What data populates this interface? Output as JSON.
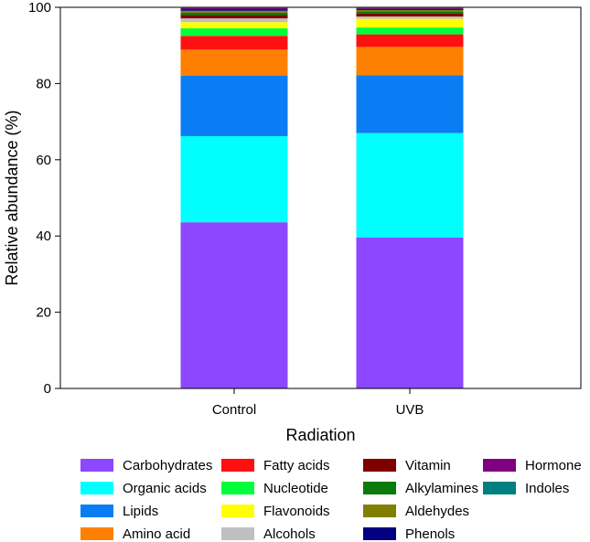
{
  "chart_data": {
    "type": "stacked_bar",
    "xlabel": "Radiation",
    "ylabel": "Relative abundance (%)",
    "ylim": [
      0,
      100
    ],
    "yticks": [
      0,
      20,
      40,
      60,
      80,
      100
    ],
    "categories": [
      "Control",
      "UVB"
    ],
    "legend_position": "bottom",
    "grid": false,
    "series": [
      {
        "name": "Carbohydrates",
        "color": "#8c47ff",
        "values": [
          43.6,
          39.6
        ]
      },
      {
        "name": "Organic acids",
        "color": "#00ffff",
        "values": [
          22.6,
          27.4
        ]
      },
      {
        "name": "Lipids",
        "color": "#0a7df5",
        "values": [
          15.9,
          15.2
        ]
      },
      {
        "name": "Amino acid",
        "color": "#ff8000",
        "values": [
          6.8,
          7.4
        ]
      },
      {
        "name": "Fatty acids",
        "color": "#ff1010",
        "values": [
          3.6,
          3.3
        ]
      },
      {
        "name": "Nucleotide",
        "color": "#00ff3a",
        "values": [
          2.0,
          1.8
        ]
      },
      {
        "name": "Flavonoids",
        "color": "#ffff00",
        "values": [
          1.6,
          2.3
        ]
      },
      {
        "name": "Alcohols",
        "color": "#c0c0c0",
        "values": [
          1.0,
          0.6
        ]
      },
      {
        "name": "Vitamin",
        "color": "#800000",
        "values": [
          0.9,
          0.8
        ]
      },
      {
        "name": "Alkylamines",
        "color": "#0a7a0a",
        "values": [
          0.6,
          0.5
        ]
      },
      {
        "name": "Aldehydes",
        "color": "#808000",
        "values": [
          0.5,
          0.4
        ]
      },
      {
        "name": "Phenols",
        "color": "#000080",
        "values": [
          0.4,
          0.3
        ]
      },
      {
        "name": "Hormone",
        "color": "#800080",
        "values": [
          0.3,
          0.2
        ]
      },
      {
        "name": "Indoles",
        "color": "#007f80",
        "values": [
          0.2,
          0.2
        ]
      }
    ]
  }
}
